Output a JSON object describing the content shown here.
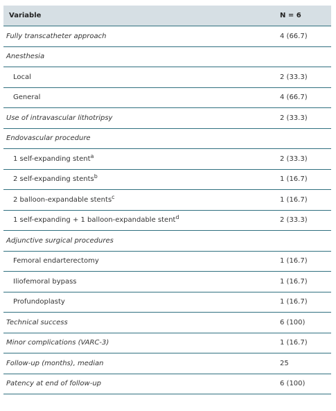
{
  "table": {
    "header": [
      "Variable",
      "N = 6"
    ],
    "rows": [
      {
        "label": "Fully transcatheter approach",
        "value": "4 (66.7)"
      },
      {
        "label": "Anesthesia"
      },
      {
        "label": "Local",
        "value": "2 (33.3)"
      },
      {
        "label": "General",
        "value": "4 (66.7)"
      },
      {
        "label": "Use of intravascular lithotripsy",
        "value": "2 (33.3)"
      },
      {
        "label": "Endovascular procedure"
      },
      {
        "label": "1 self-expanding stent",
        "note": "a",
        "value": "2 (33.3)"
      },
      {
        "label": "2 self-expanding stents",
        "note": "b",
        "value": "1 (16.7)"
      },
      {
        "label": "2 balloon-expandable stents",
        "note": "c",
        "value": "1 (16.7)"
      },
      {
        "label": "1 self-expanding + 1 balloon-expandable stent",
        "note": "d",
        "value": "2 (33.3)"
      },
      {
        "label": "Adjunctive surgical procedures"
      },
      {
        "label": "Femoral endarterectomy",
        "value": "1 (16.7)"
      },
      {
        "label": "Iliofemoral bypass",
        "value": "1 (16.7)"
      },
      {
        "label": "Profundoplasty",
        "value": "1 (16.7)"
      },
      {
        "label": "Technical success",
        "value": "6 (100)"
      },
      {
        "label": "Minor complications (VARC-3)",
        "value": "1 (16.7)"
      },
      {
        "label": "Follow-up (months), median",
        "value": "25"
      },
      {
        "label": "Patency at end of follow-up",
        "value": "6 (100)"
      }
    ]
  }
}
